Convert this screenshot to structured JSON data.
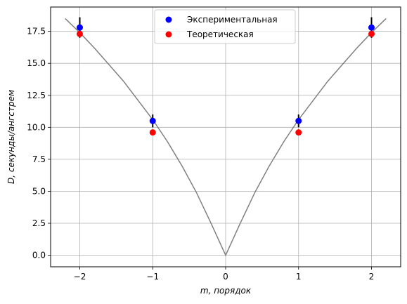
{
  "chart_data": {
    "type": "scatter",
    "title": "",
    "xlabel": "m, порядок",
    "ylabel": "D, секунды/ангстрем",
    "xlim": [
      -2.4,
      2.4
    ],
    "ylim": [
      -0.9,
      19.4
    ],
    "grid": true,
    "legend_placement": "top-center",
    "x_ticks": [
      -2,
      -1,
      0,
      1,
      2
    ],
    "x_tick_labels": [
      "−2",
      "−1",
      "0",
      "1",
      "2"
    ],
    "y_ticks": [
      0.0,
      2.5,
      5.0,
      7.5,
      10.0,
      12.5,
      15.0,
      17.5
    ],
    "y_tick_labels": [
      "0.0",
      "2.5",
      "5.0",
      "7.5",
      "10.0",
      "12.5",
      "15.0",
      "17.5"
    ],
    "series": [
      {
        "name": "Экспериментальная",
        "color": "#0000ff",
        "x": [
          -2,
          -1,
          1,
          2
        ],
        "y": [
          17.8,
          10.5,
          10.5,
          17.8
        ],
        "yerr": [
          0.8,
          0.5,
          0.5,
          0.8
        ]
      },
      {
        "name": "Теоретическая",
        "color": "#ff0000",
        "x": [
          -2,
          -1,
          1,
          2
        ],
        "y": [
          17.3,
          9.6,
          9.6,
          17.3
        ]
      }
    ],
    "curve": {
      "color": "#808080",
      "x": [
        -2.2,
        -2.0,
        -1.8,
        -1.6,
        -1.4,
        -1.2,
        -1.0,
        -0.8,
        -0.6,
        -0.4,
        -0.2,
        0.0,
        0.2,
        0.4,
        0.6,
        0.8,
        1.0,
        1.2,
        1.4,
        1.6,
        1.8,
        2.0,
        2.2
      ],
      "y": [
        18.5,
        17.4,
        16.2,
        14.9,
        13.6,
        12.1,
        10.6,
        8.9,
        7.0,
        4.9,
        2.5,
        0.0,
        2.5,
        4.9,
        7.0,
        8.9,
        10.6,
        12.1,
        13.6,
        14.9,
        16.2,
        17.4,
        18.5
      ]
    }
  }
}
